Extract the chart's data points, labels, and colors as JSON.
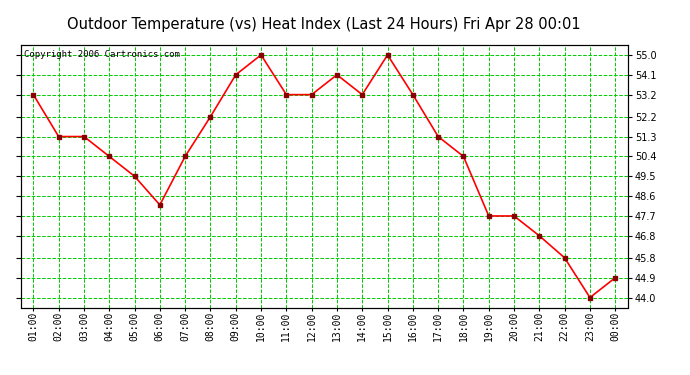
{
  "title": "Outdoor Temperature (vs) Heat Index (Last 24 Hours) Fri Apr 28 00:01",
  "copyright": "Copyright 2006 Cartronics.com",
  "x_labels": [
    "01:00",
    "02:00",
    "03:00",
    "04:00",
    "05:00",
    "06:00",
    "07:00",
    "08:00",
    "09:00",
    "10:00",
    "11:00",
    "12:00",
    "13:00",
    "14:00",
    "15:00",
    "16:00",
    "17:00",
    "18:00",
    "19:00",
    "20:00",
    "21:00",
    "22:00",
    "23:00",
    "00:00"
  ],
  "y_values": [
    53.2,
    51.3,
    51.3,
    50.4,
    49.5,
    48.2,
    50.4,
    52.2,
    54.1,
    55.0,
    53.2,
    53.2,
    54.1,
    53.2,
    55.0,
    53.2,
    51.3,
    50.4,
    47.7,
    47.7,
    46.8,
    45.8,
    44.0,
    44.9
  ],
  "line_color": "#ff0000",
  "marker_color": "#880000",
  "bg_color": "#ffffff",
  "plot_bg_color": "#ffffff",
  "grid_color": "#00cc00",
  "title_fontsize": 10.5,
  "copyright_fontsize": 6.5,
  "tick_fontsize": 7,
  "ylim": [
    43.55,
    55.45
  ],
  "yticks": [
    44.0,
    44.9,
    45.8,
    46.8,
    47.7,
    48.6,
    49.5,
    50.4,
    51.3,
    52.2,
    53.2,
    54.1,
    55.0
  ],
  "border_color": "#000000"
}
